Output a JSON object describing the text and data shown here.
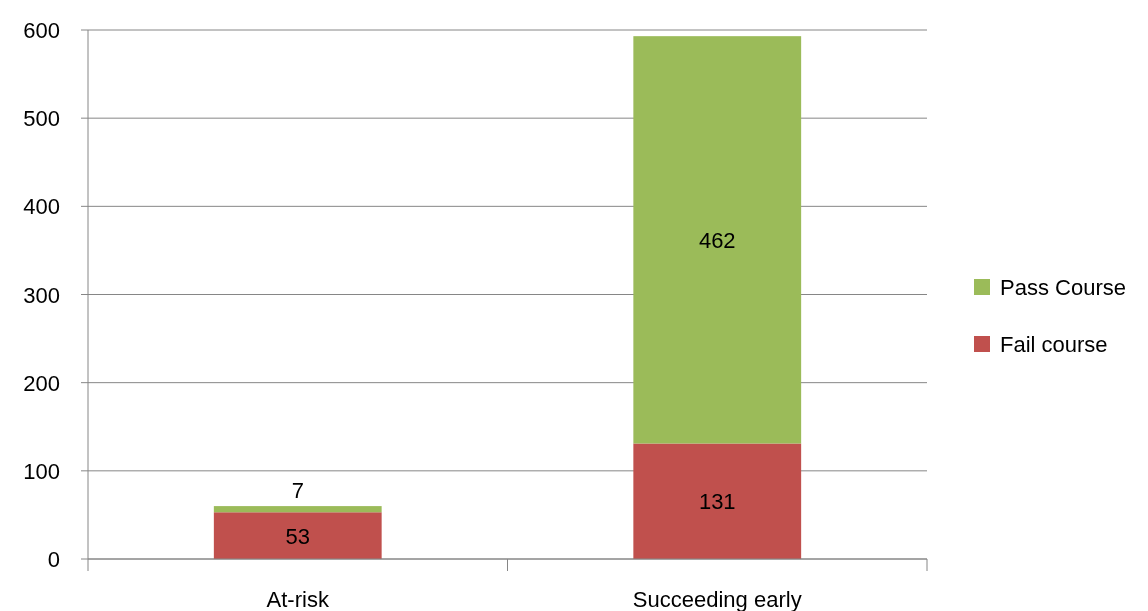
{
  "chart_data": {
    "type": "bar",
    "stacked": true,
    "categories": [
      "At-risk",
      "Succeeding early"
    ],
    "series": [
      {
        "name": "Fail course",
        "color": "#c0504d",
        "values": [
          53,
          131
        ]
      },
      {
        "name": "Pass Course",
        "color": "#9bbb59",
        "values": [
          7,
          462
        ]
      }
    ],
    "ylim": [
      0,
      600
    ],
    "yticks": [
      0,
      100,
      200,
      300,
      400,
      500,
      600
    ],
    "grid": "y",
    "legend": "right",
    "data_labels": true
  }
}
